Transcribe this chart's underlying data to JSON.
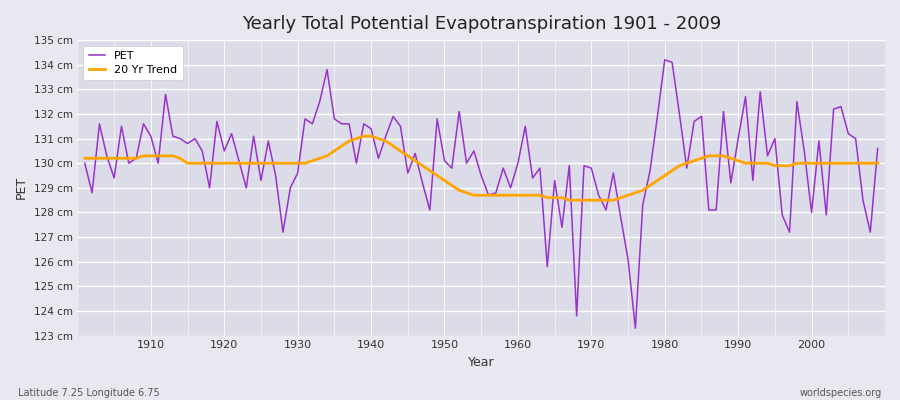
{
  "title": "Yearly Total Potential Evapotranspiration 1901 - 2009",
  "xlabel": "Year",
  "ylabel": "PET",
  "subtitle_left": "Latitude 7.25 Longitude 6.75",
  "subtitle_right": "worldspecies.org",
  "ylim": [
    123,
    135
  ],
  "pet_color": "#9932CC",
  "trend_color": "#FFA500",
  "bg_color": "#E8E8F0",
  "plot_bg_color": "#DCDCE8",
  "pet_label": "PET",
  "trend_label": "20 Yr Trend",
  "years": [
    1901,
    1902,
    1903,
    1904,
    1905,
    1906,
    1907,
    1908,
    1909,
    1910,
    1911,
    1912,
    1913,
    1914,
    1915,
    1916,
    1917,
    1918,
    1919,
    1920,
    1921,
    1922,
    1923,
    1924,
    1925,
    1926,
    1927,
    1928,
    1929,
    1930,
    1931,
    1932,
    1933,
    1934,
    1935,
    1936,
    1937,
    1938,
    1939,
    1940,
    1941,
    1942,
    1943,
    1944,
    1945,
    1946,
    1947,
    1948,
    1949,
    1950,
    1951,
    1952,
    1953,
    1954,
    1955,
    1956,
    1957,
    1958,
    1959,
    1960,
    1961,
    1962,
    1963,
    1964,
    1965,
    1966,
    1967,
    1968,
    1969,
    1970,
    1971,
    1972,
    1973,
    1974,
    1975,
    1976,
    1977,
    1978,
    1979,
    1980,
    1981,
    1982,
    1983,
    1984,
    1985,
    1986,
    1987,
    1988,
    1989,
    1990,
    1991,
    1992,
    1993,
    1994,
    1995,
    1996,
    1997,
    1998,
    1999,
    2000,
    2001,
    2002,
    2003,
    2004,
    2005,
    2006,
    2007,
    2008,
    2009
  ],
  "pet_values": [
    130.0,
    128.8,
    131.6,
    130.3,
    129.4,
    131.5,
    130.0,
    130.2,
    131.6,
    131.1,
    130.0,
    132.8,
    131.1,
    131.0,
    130.8,
    131.0,
    130.5,
    129.0,
    131.7,
    130.5,
    131.2,
    130.1,
    129.0,
    131.1,
    129.3,
    130.9,
    129.5,
    127.2,
    129.0,
    129.6,
    131.8,
    131.6,
    132.5,
    133.8,
    131.8,
    131.6,
    131.6,
    130.0,
    131.6,
    131.4,
    130.2,
    131.1,
    131.9,
    131.5,
    129.6,
    130.4,
    129.2,
    128.1,
    131.8,
    130.1,
    129.8,
    132.1,
    130.0,
    130.5,
    129.5,
    128.7,
    128.8,
    129.8,
    129.0,
    130.0,
    131.5,
    129.4,
    129.8,
    125.8,
    129.3,
    127.4,
    129.9,
    123.8,
    129.9,
    129.8,
    128.7,
    128.1,
    129.6,
    127.8,
    126.1,
    123.3,
    128.3,
    129.7,
    131.9,
    134.2,
    134.1,
    132.0,
    129.8,
    131.7,
    131.9,
    128.1,
    128.1,
    132.1,
    129.2,
    131.0,
    132.7,
    129.3,
    132.9,
    130.3,
    131.0,
    127.9,
    127.2,
    132.5,
    130.5,
    128.0,
    130.9,
    127.9,
    132.2,
    132.3,
    131.2,
    131.0,
    128.5,
    127.2,
    130.6
  ],
  "trend_values": [
    130.2,
    130.2,
    130.2,
    130.2,
    130.2,
    130.2,
    130.2,
    130.2,
    130.3,
    130.3,
    130.3,
    130.3,
    130.3,
    130.2,
    130.0,
    130.0,
    130.0,
    130.0,
    130.0,
    130.0,
    130.0,
    130.0,
    130.0,
    130.0,
    130.0,
    130.0,
    130.0,
    130.0,
    130.0,
    130.0,
    130.0,
    130.1,
    130.2,
    130.3,
    130.5,
    130.7,
    130.9,
    131.0,
    131.1,
    131.1,
    131.0,
    130.9,
    130.7,
    130.5,
    130.3,
    130.1,
    129.9,
    129.7,
    129.5,
    129.3,
    129.1,
    128.9,
    128.8,
    128.7,
    128.7,
    128.7,
    128.7,
    128.7,
    128.7,
    128.7,
    128.7,
    128.7,
    128.7,
    128.6,
    128.6,
    128.6,
    128.5,
    128.5,
    128.5,
    128.5,
    128.5,
    128.5,
    128.5,
    128.6,
    128.7,
    128.8,
    128.9,
    129.1,
    129.3,
    129.5,
    129.7,
    129.9,
    130.0,
    130.1,
    130.2,
    130.3,
    130.3,
    130.3,
    130.2,
    130.1,
    130.0,
    130.0,
    130.0,
    130.0,
    129.9,
    129.9,
    129.9,
    130.0,
    130.0,
    130.0,
    130.0,
    130.0,
    130.0,
    130.0,
    130.0,
    130.0,
    130.0,
    130.0,
    130.0
  ]
}
